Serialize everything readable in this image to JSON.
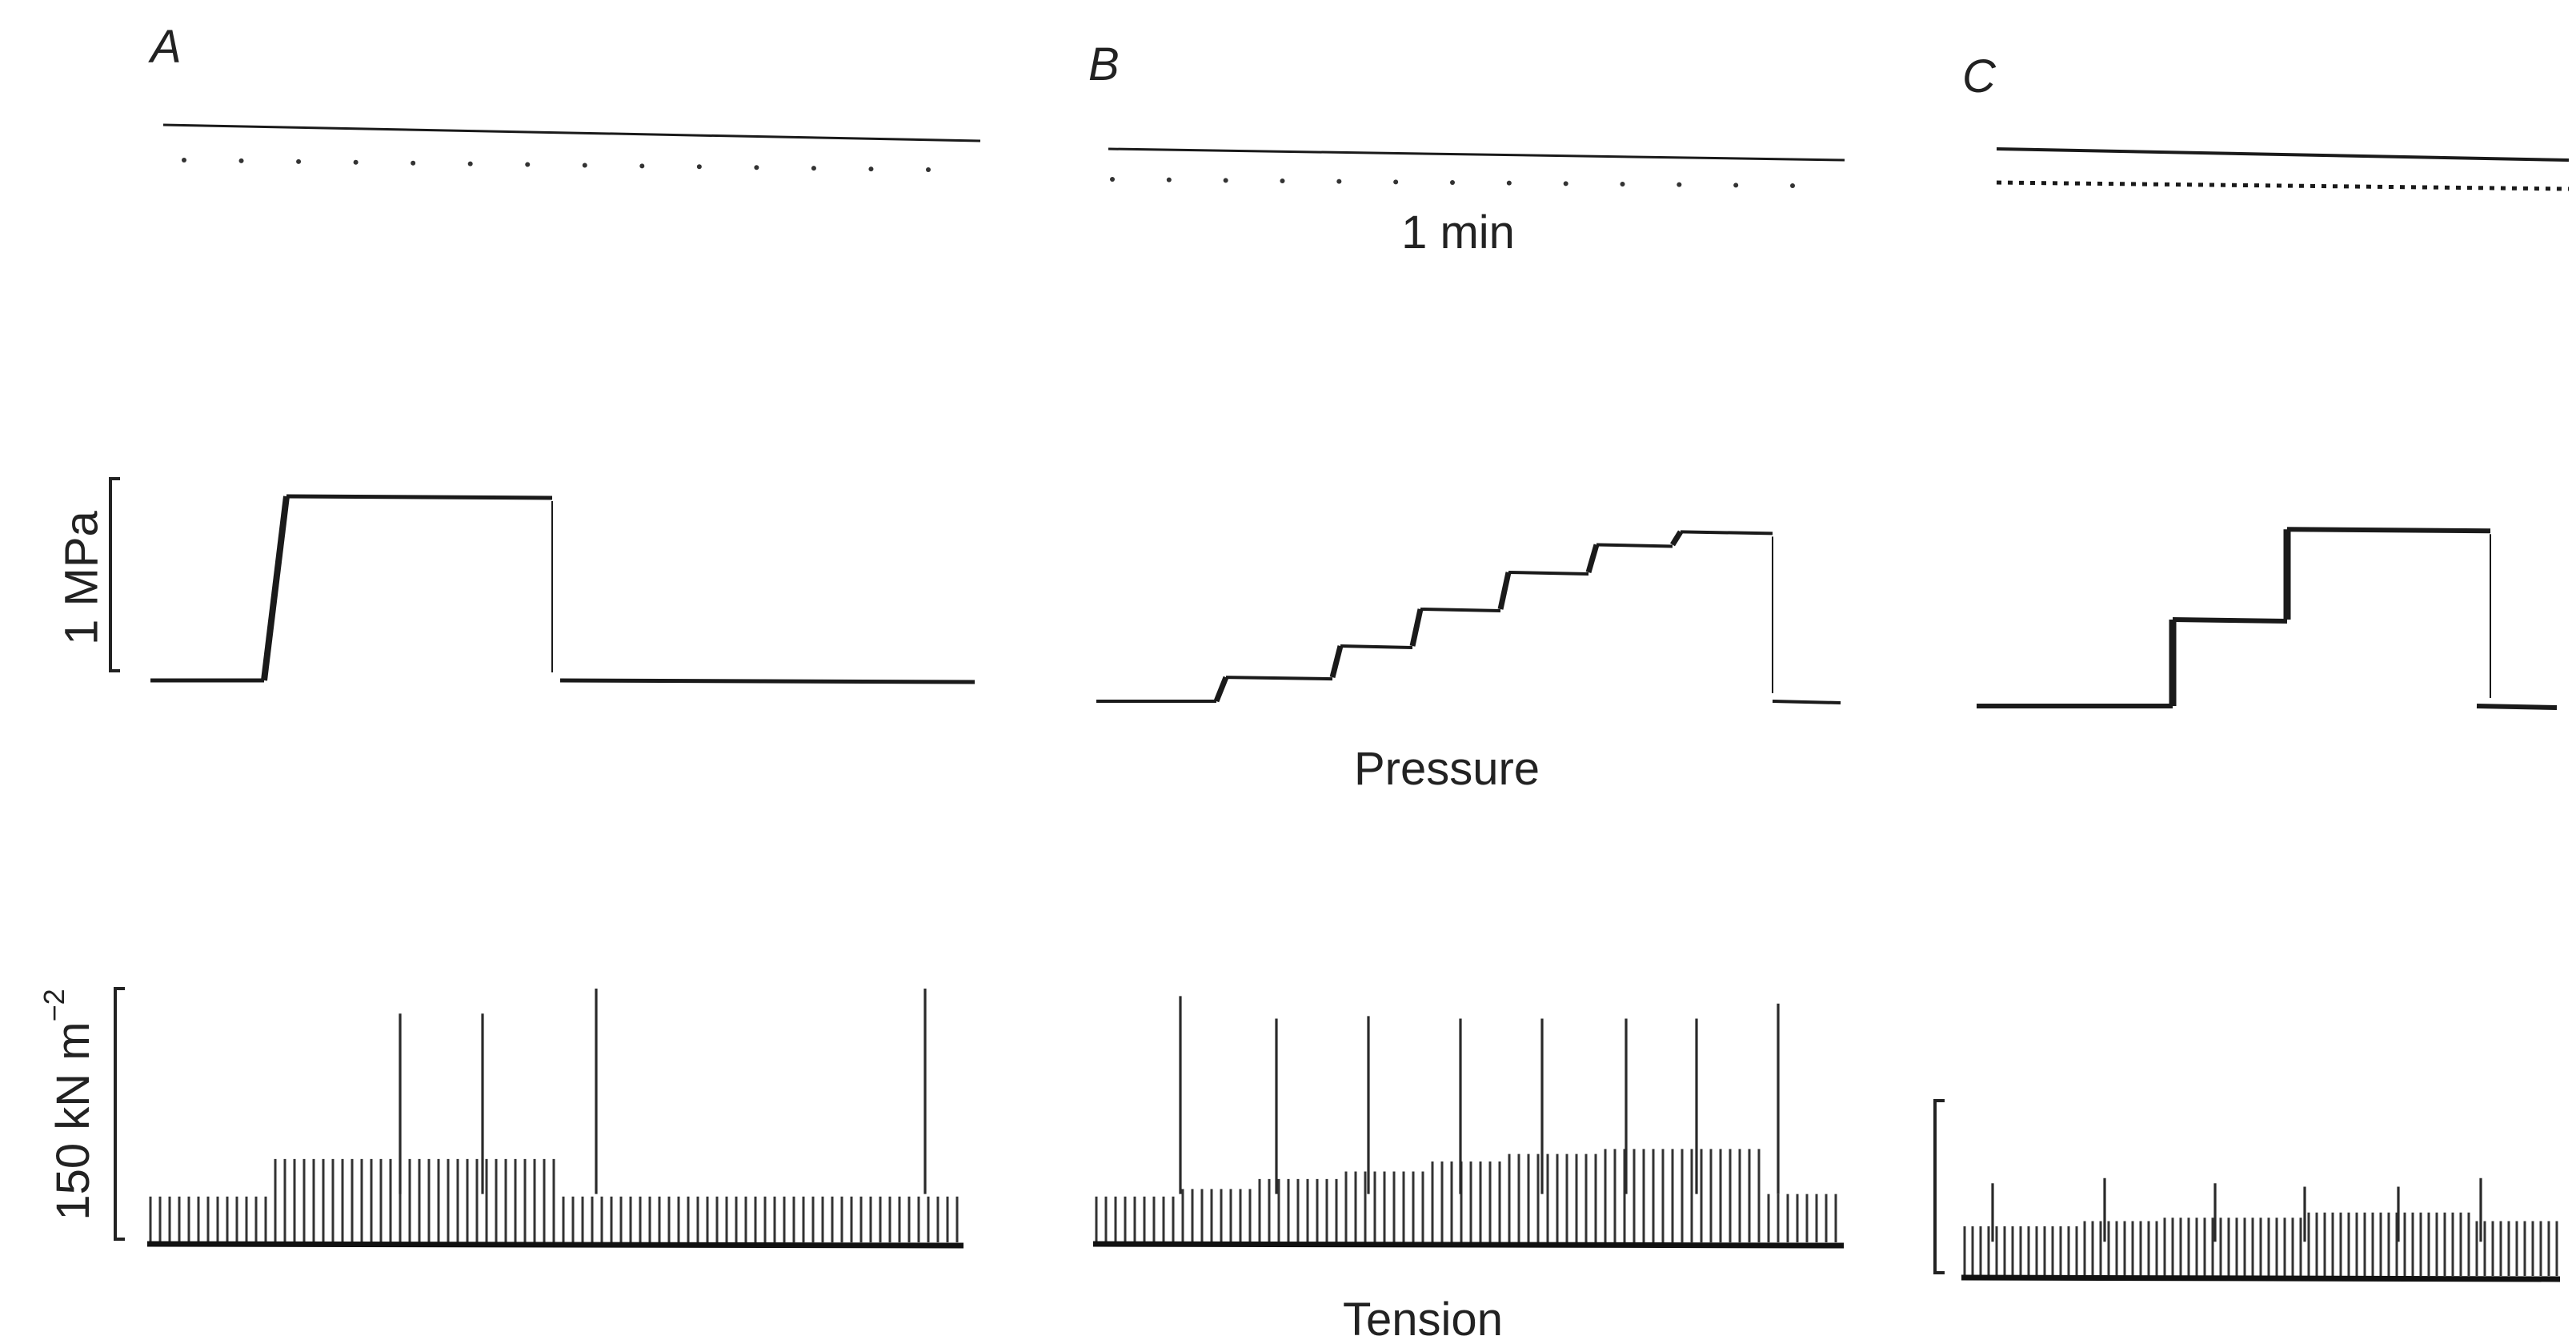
{
  "chart_data": [
    {
      "panel": "A",
      "type": "line",
      "timebase_label": "",
      "pressure_steps": [
        0,
        1,
        0
      ],
      "tension": {
        "baseline_level": 0.17,
        "level_segments": [
          0.17,
          0.32,
          0.17
        ],
        "twitch_peaks": [
          0.9,
          0.9,
          1.0,
          1.0
        ]
      }
    },
    {
      "panel": "B",
      "type": "line",
      "timebase_label": "1 min",
      "pressure_label": "Pressure",
      "tension_label": "Tension",
      "pressure_steps": [
        0,
        0.13,
        0.3,
        0.5,
        0.7,
        0.85,
        0.92,
        0
      ],
      "tension": {
        "baseline_level": 0.17,
        "level_segments": [
          0.17,
          0.2,
          0.24,
          0.27,
          0.31,
          0.34,
          0.36,
          0.18
        ],
        "twitch_peaks": [
          0.97,
          0.88,
          0.89,
          0.88,
          0.88,
          0.88,
          0.88,
          0.94
        ]
      }
    },
    {
      "panel": "C",
      "type": "line",
      "timebase_label": "",
      "pressure_steps": [
        0,
        0.45,
        0.92,
        0
      ],
      "tension": {
        "baseline_level": 0.27,
        "level_segments": [
          0.27,
          0.3,
          0.32,
          0.35,
          0.3
        ],
        "twitch_peaks": [
          0.52,
          0.55,
          0.52,
          0.5,
          0.5,
          0.55
        ]
      }
    }
  ],
  "axes": {
    "pressure_scale_label": "1 MPa",
    "tension_scale_label": "150 kN m",
    "tension_scale_exponent": "−2"
  },
  "colors": {
    "ink": "#1a1a1a",
    "background": "#ffffff"
  }
}
